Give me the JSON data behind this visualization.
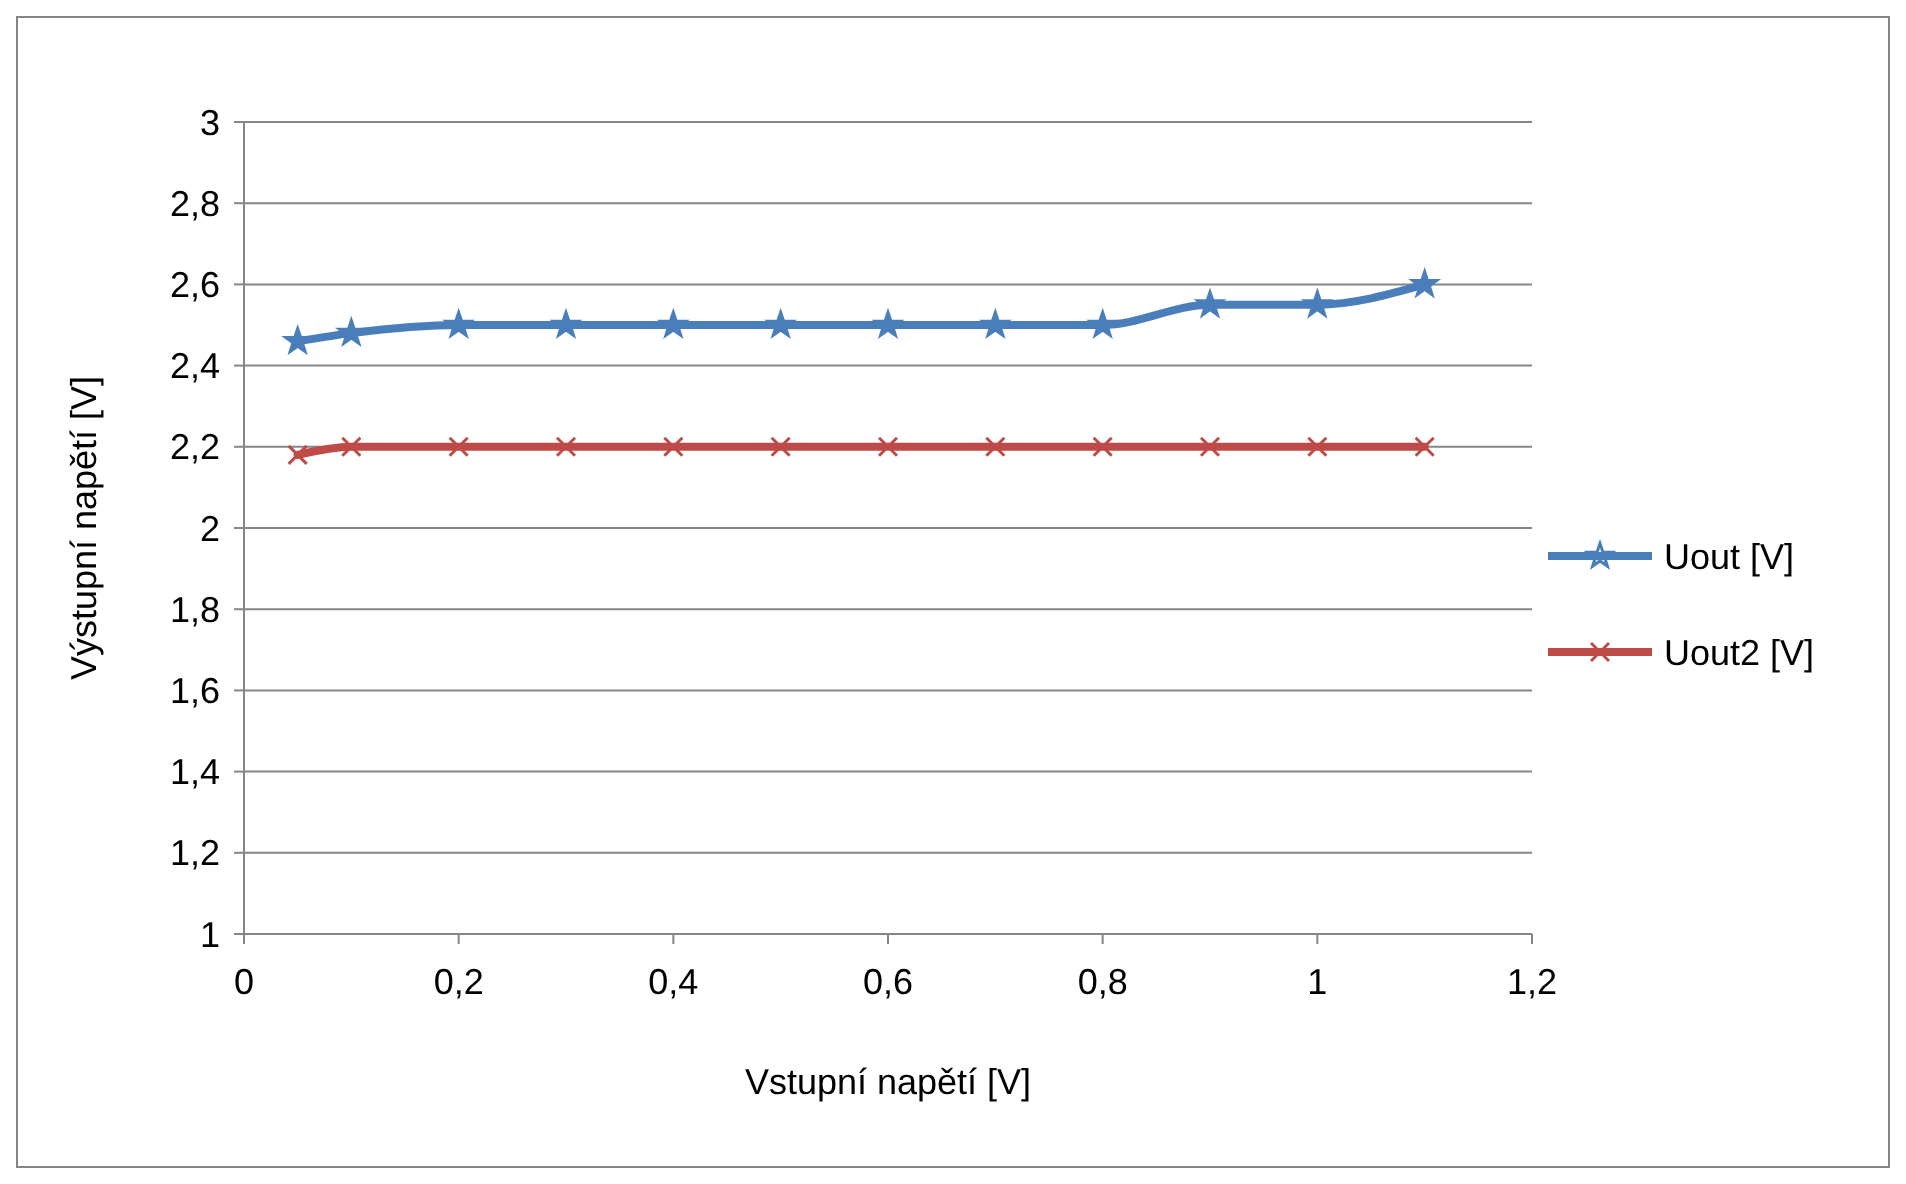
{
  "chart_data": {
    "type": "line",
    "xlabel": "Vstupní napětí [V]",
    "ylabel": "Výstupní napětí [V]",
    "x": [
      0.05,
      0.1,
      0.2,
      0.3,
      0.4,
      0.5,
      0.6,
      0.7,
      0.8,
      0.9,
      1,
      1.1
    ],
    "series": [
      {
        "name": "Uout [V]",
        "color": "#4a7ebb",
        "marker": "star",
        "values": [
          2.46,
          2.48,
          2.5,
          2.5,
          2.5,
          2.5,
          2.5,
          2.5,
          2.5,
          2.55,
          2.55,
          2.6
        ]
      },
      {
        "name": "Uout2 [V]",
        "color": "#be4b48",
        "marker": "cross",
        "values": [
          2.18,
          2.2,
          2.2,
          2.2,
          2.2,
          2.2,
          2.2,
          2.2,
          2.2,
          2.2,
          2.2,
          2.2
        ]
      }
    ],
    "xlim": [
      0,
      1.2
    ],
    "xticks": [
      {
        "value": 0,
        "label": "0"
      },
      {
        "value": 0.2,
        "label": "0,2"
      },
      {
        "value": 0.4,
        "label": "0,4"
      },
      {
        "value": 0.6,
        "label": "0,6"
      },
      {
        "value": 0.8,
        "label": "0,8"
      },
      {
        "value": 1,
        "label": "1"
      },
      {
        "value": 1.2,
        "label": "1,2"
      }
    ],
    "ylim": [
      1,
      3
    ],
    "yticks": [
      {
        "value": 1,
        "label": "1"
      },
      {
        "value": 1.2,
        "label": "1,2"
      },
      {
        "value": 1.4,
        "label": "1,4"
      },
      {
        "value": 1.6,
        "label": "1,6"
      },
      {
        "value": 1.8,
        "label": "1,8"
      },
      {
        "value": 2,
        "label": "2"
      },
      {
        "value": 2.2,
        "label": "2,2"
      },
      {
        "value": 2.4,
        "label": "2,4"
      },
      {
        "value": 2.6,
        "label": "2,6"
      },
      {
        "value": 2.8,
        "label": "2,8"
      },
      {
        "value": 3,
        "label": "3"
      }
    ],
    "grid": "y",
    "legend": "right",
    "line_style": "solid"
  }
}
